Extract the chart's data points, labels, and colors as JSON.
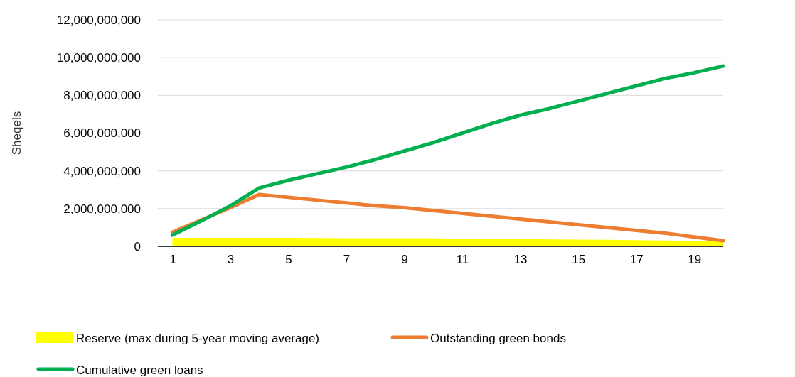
{
  "chart_data": {
    "type": "line",
    "ylabel": "Sheqels",
    "x": [
      1,
      2,
      3,
      4,
      5,
      6,
      7,
      8,
      9,
      10,
      11,
      12,
      13,
      14,
      15,
      16,
      17,
      18,
      19,
      20
    ],
    "xlim": [
      0.5,
      20
    ],
    "xticks": [
      1,
      3,
      5,
      7,
      9,
      11,
      13,
      15,
      17,
      19
    ],
    "series": [
      {
        "name": "Reserve (max during 5-year moving average)",
        "type": "area",
        "color": "#ffff00",
        "values": [
          450000000,
          450000000,
          450000000,
          450000000,
          450000000,
          440000000,
          430000000,
          430000000,
          430000000,
          430000000,
          390000000,
          390000000,
          380000000,
          370000000,
          360000000,
          350000000,
          330000000,
          310000000,
          300000000,
          300000000
        ]
      },
      {
        "name": "Outstanding green bonds",
        "color": "#ed7d31",
        "values": [
          750000000,
          1400000000,
          2050000000,
          2750000000,
          2600000000,
          2450000000,
          2300000000,
          2150000000,
          2050000000,
          1900000000,
          1750000000,
          1600000000,
          1450000000,
          1300000000,
          1150000000,
          1000000000,
          850000000,
          700000000,
          500000000,
          300000000
        ]
      },
      {
        "name": "Cumulative green loans",
        "color": "#00b050",
        "values": [
          600000000,
          1350000000,
          2150000000,
          3100000000,
          3500000000,
          3850000000,
          4200000000,
          4600000000,
          5050000000,
          5500000000,
          6000000000,
          6500000000,
          6950000000,
          7300000000,
          7700000000,
          8100000000,
          8500000000,
          8900000000,
          9200000000,
          9550000000
        ]
      }
    ],
    "ylim": [
      0,
      12000000000
    ],
    "yticks": [
      {
        "value": 0,
        "label": "0"
      },
      {
        "value": 2000000000,
        "label": "2,000,000,000"
      },
      {
        "value": 4000000000,
        "label": "4,000,000,000"
      },
      {
        "value": 6000000000,
        "label": "6,000,000,000"
      },
      {
        "value": 8000000000,
        "label": "8,000,000,000"
      },
      {
        "value": 10000000000,
        "label": "10,000,000,000"
      },
      {
        "value": 12000000000,
        "label": "12,000,000,000"
      }
    ],
    "grid": "y",
    "legend": "bottom",
    "marker": "none",
    "line_style": "solid"
  }
}
